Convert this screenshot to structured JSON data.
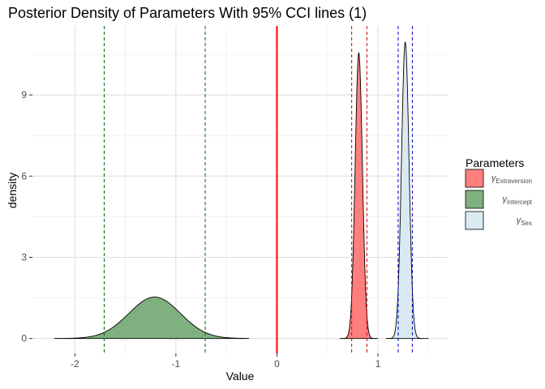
{
  "chart_data": {
    "type": "area",
    "title": "Posterior Density of Parameters With 95% CCI lines (1)",
    "xlabel": "Value",
    "ylabel": "density",
    "xlim": [
      -2.42,
      1.69
    ],
    "ylim": [
      -0.55,
      11.55
    ],
    "x_ticks": [
      -2,
      -1,
      0,
      1
    ],
    "x_tick_labels": [
      "-2",
      "-1",
      "0",
      "1"
    ],
    "y_ticks": [
      0,
      3,
      6,
      9
    ],
    "y_tick_labels": [
      "0",
      "3",
      "6",
      "9"
    ],
    "grid": true,
    "legend": {
      "title": "Parameters",
      "position": "right",
      "entries": [
        {
          "symbol": "γ",
          "subscript": "Extraversion",
          "color": "#FF7F7F"
        },
        {
          "symbol": "γ",
          "subscript": "Intercept",
          "color": "#7FB07F"
        },
        {
          "symbol": "γ",
          "subscript": "Sex",
          "color": "#D9EAF3"
        }
      ]
    },
    "series": [
      {
        "name": "Extraversion",
        "color": "#FF7F7F",
        "mean": 0.81,
        "sd": 0.036,
        "peak": 10.55,
        "range": [
          0.62,
          1.0
        ]
      },
      {
        "name": "Intercept",
        "color": "#7FB07F",
        "mean": -1.21,
        "sd": 0.255,
        "peak": 1.53,
        "range": [
          -2.2,
          -0.28
        ]
      },
      {
        "name": "Sex",
        "color": "#D9EAF3",
        "mean": 1.27,
        "sd": 0.037,
        "peak": 10.95,
        "range": [
          1.08,
          1.5
        ]
      }
    ],
    "zero_line": {
      "x": 0,
      "color": "#FF0000"
    },
    "cci_lines": [
      {
        "name": "Intercept",
        "color": "#006400",
        "lower": -1.71,
        "upper": -0.71
      },
      {
        "name": "Extraversion",
        "color": "#CC0000",
        "lower": 0.74,
        "upper": 0.89
      },
      {
        "name": "Sex",
        "color": "#0000CC",
        "lower": 1.2,
        "upper": 1.34
      }
    ]
  }
}
